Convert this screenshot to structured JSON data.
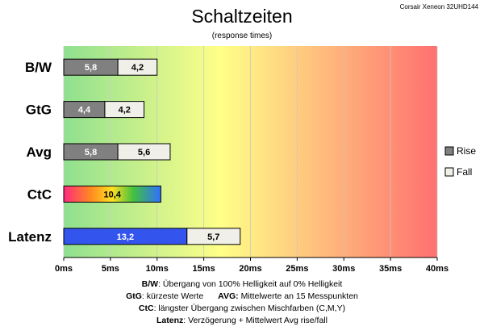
{
  "header": {
    "title": "Schaltzeiten",
    "subtitle": "(response times)",
    "device": "Corsair Xeneon 32UHD144"
  },
  "legend": {
    "rise": "Rise",
    "fall": "Fall"
  },
  "colors": {
    "rise": "#808080",
    "fall": "#f0f0e8",
    "latenz_rise": "#3355ee",
    "bg_start": "#8fe08f",
    "bg_mid": "#ffff88",
    "bg_end": "#ff7070"
  },
  "notes": {
    "bw_key": "B/W",
    "bw_text": ":  Übergang von 100% Helligkeit auf 0% Helligkeit",
    "gtg_key": "GtG",
    "gtg_text": ": kürzeste  Werte",
    "avg_key": "AVG:",
    "avg_text": " Mittelwerte  an 15 Messpunkten",
    "ctc_key": "CtC",
    "ctc_text": ": längster Übergang  zwischen Mischfarben (C,M,Y)",
    "lat_key": "Latenz",
    "lat_text": ": Verzögerung  + Mittelwert Avg rise/fall"
  },
  "chart_data": {
    "type": "bar",
    "orientation": "horizontal",
    "stacked": true,
    "categories": [
      "B/W",
      "GtG",
      "Avg",
      "CtC",
      "Latenz"
    ],
    "series": [
      {
        "name": "Rise",
        "values": [
          5.8,
          4.4,
          5.8,
          10.4,
          13.2
        ],
        "labels": [
          "5,8",
          "4,4",
          "5,8",
          "10,4",
          "13,2"
        ]
      },
      {
        "name": "Fall",
        "values": [
          4.2,
          4.2,
          5.6,
          null,
          5.7
        ],
        "labels": [
          "4,2",
          "4,2",
          "5,6",
          "",
          "5,7"
        ]
      }
    ],
    "xlim": [
      0,
      40
    ],
    "ticks": [
      0,
      5,
      10,
      15,
      20,
      25,
      30,
      35,
      40
    ],
    "tick_labels": [
      "0ms",
      "5ms",
      "10ms",
      "15ms",
      "20ms",
      "25ms",
      "30ms",
      "35ms",
      "40ms"
    ],
    "legend_position": "right",
    "grid": true
  }
}
